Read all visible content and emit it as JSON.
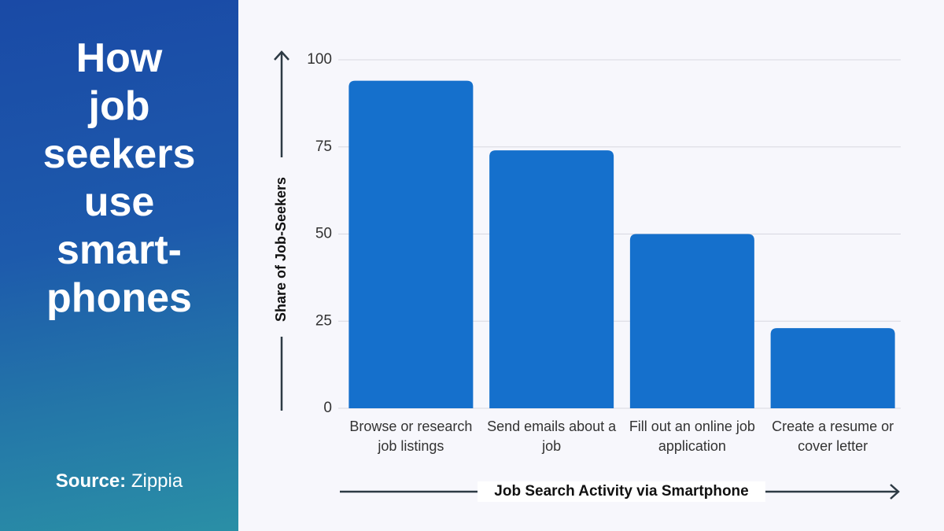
{
  "chart_data": {
    "type": "bar",
    "title": "How job seekers use smart-phones",
    "source_label": "Source:",
    "source": "Zippia",
    "y_label": "Share of Job-Seekers",
    "x_label": "Job Search Activity via Smartphone",
    "categories": [
      "Browse or research job listings",
      "Send emails about a job",
      "Fill out an online job application",
      "Create a resume or cover letter"
    ],
    "values": [
      94,
      74,
      50,
      23
    ],
    "color": "#1570cc",
    "ylim": [
      0,
      100
    ],
    "yticks": [
      0,
      25,
      50,
      75,
      100
    ],
    "grid": true
  }
}
